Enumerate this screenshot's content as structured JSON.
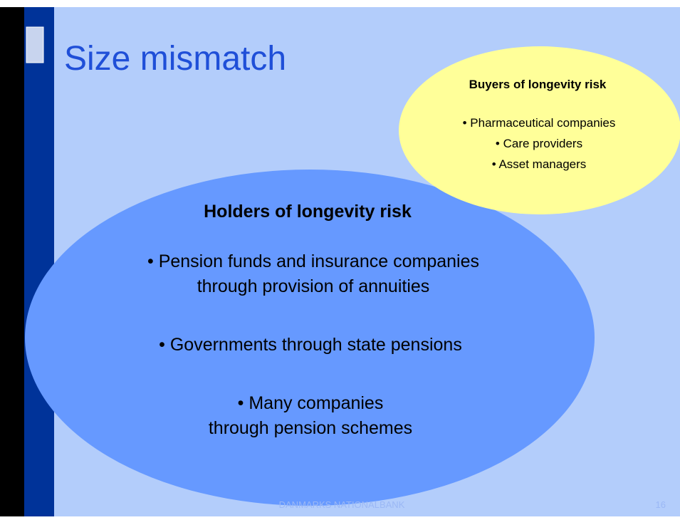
{
  "title": "Size mismatch",
  "holders": {
    "heading": "Holders of longevity risk",
    "lines": [
      "• Pension funds and insurance companies",
      "through provision of annuities",
      "• Governments through state pensions",
      "• Many companies",
      "through pension schemes"
    ]
  },
  "buyers": {
    "heading": "Buyers of longevity risk",
    "lines": [
      "• Pharmaceutical companies",
      "• Care providers",
      "• Asset managers"
    ]
  },
  "footer": {
    "organization": "DANMARKS NATIONALBANK",
    "page": "16"
  }
}
